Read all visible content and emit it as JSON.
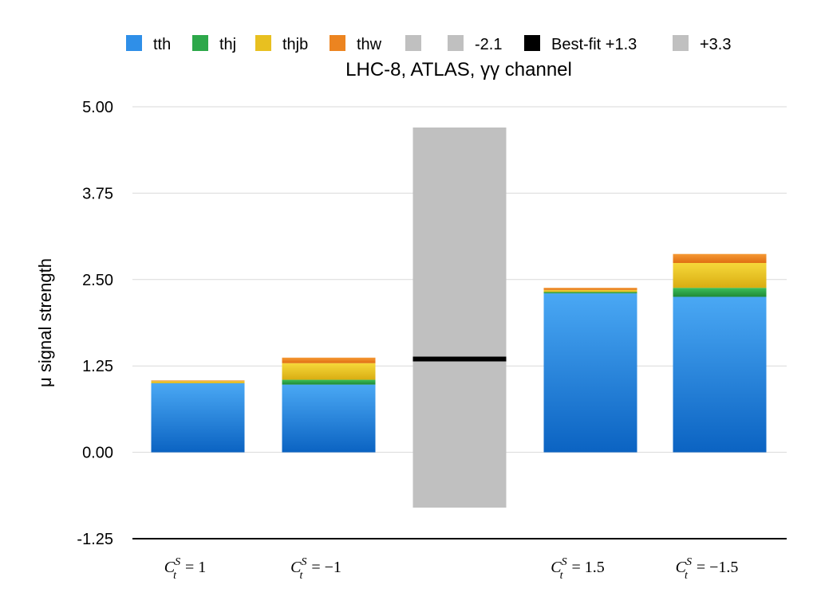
{
  "chart_data": {
    "type": "bar",
    "title": "LHC-8, ATLAS, γγ channel",
    "ylabel": "μ signal strength",
    "xlabel": "",
    "ylim": [
      -1.25,
      5.0
    ],
    "yticks": [
      "5.00",
      "3.75",
      "2.50",
      "1.25",
      "0.00",
      "-1.25"
    ],
    "ytick_values": [
      5.0,
      3.75,
      2.5,
      1.25,
      0.0,
      -1.25
    ],
    "grid": true,
    "legend_position": "top",
    "legend": [
      {
        "label": "tth",
        "color": "#2f8fe8"
      },
      {
        "label": "thj",
        "color": "#2da84a"
      },
      {
        "label": "thjb",
        "color": "#e8c020"
      },
      {
        "label": "thw",
        "color": "#ec8420"
      },
      {
        "label": "",
        "color": "#c0c0c0"
      },
      {
        "label": "-2.1",
        "color": "#c0c0c0"
      },
      {
        "label": "Best-fit +1.3",
        "color": "#000000"
      },
      {
        "label": "+3.3",
        "color": "#c0c0c0"
      }
    ],
    "categories": [
      {
        "sym": "C",
        "sup": "S",
        "sub": "t",
        "rhs": "= 1"
      },
      {
        "sym": "C",
        "sup": "S",
        "sub": "t",
        "rhs": "= −1"
      },
      {
        "sym": "",
        "sup": "",
        "sub": "",
        "rhs": ""
      },
      {
        "sym": "C",
        "sup": "S",
        "sub": "t",
        "rhs": "= 1.5"
      },
      {
        "sym": "C",
        "sup": "S",
        "sub": "t",
        "rhs": "= −1.5"
      }
    ],
    "series": [
      {
        "name": "tth",
        "values": [
          1.0,
          0.98,
          0,
          2.3,
          2.25
        ]
      },
      {
        "name": "thj",
        "values": [
          0.0,
          0.07,
          0,
          0.02,
          0.13
        ]
      },
      {
        "name": "thjb",
        "values": [
          0.03,
          0.24,
          0,
          0.03,
          0.36
        ]
      },
      {
        "name": "thw",
        "values": [
          0.01,
          0.08,
          0,
          0.03,
          0.13
        ]
      }
    ],
    "band": {
      "category_index": 2,
      "low": -0.8,
      "high": 4.7,
      "best_fit": 1.35
    }
  }
}
